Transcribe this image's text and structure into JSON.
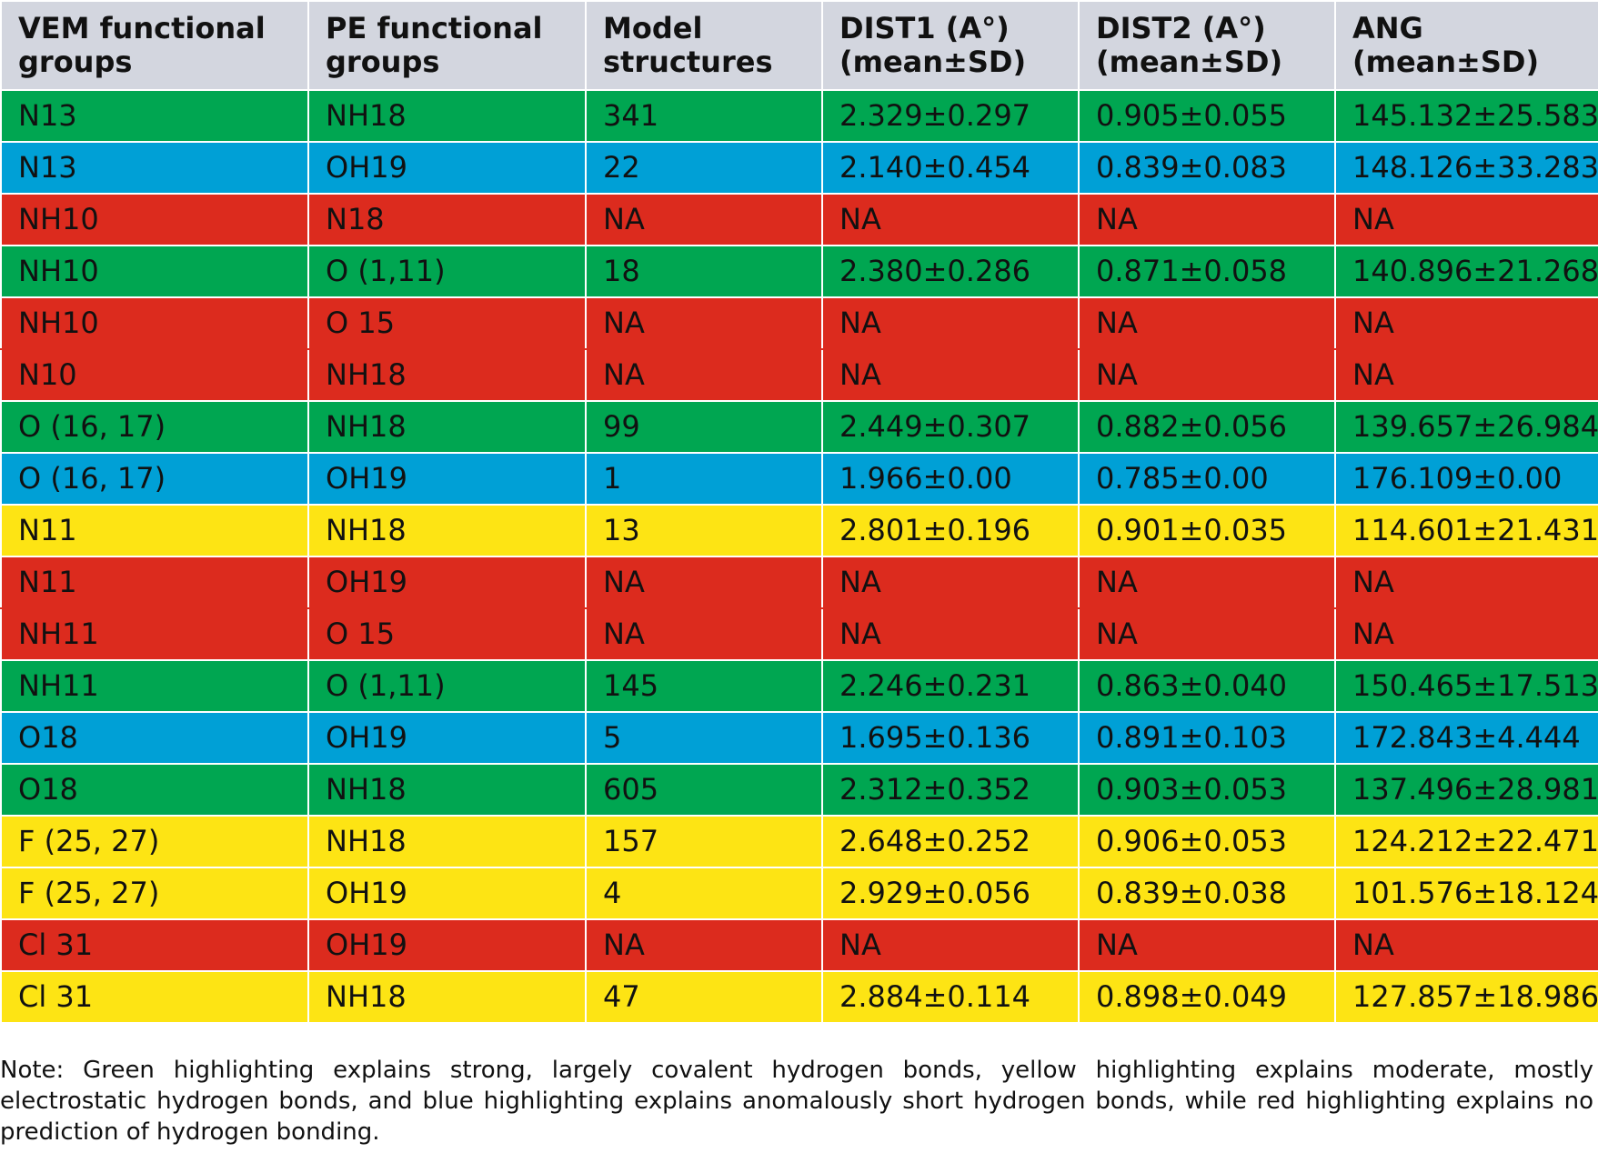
{
  "table": {
    "headers": [
      "VEM functional groups",
      "PE functional groups",
      "Model structures",
      "DIST1 (A°) (mean±SD)",
      "DIST2 (A°) (mean±SD)",
      "ANG (mean±SD)"
    ],
    "colors": {
      "header": "#d3d6df",
      "green": "#00a651",
      "blue": "#00a0d6",
      "red": "#dc2b1e",
      "yellow": "#fde414"
    },
    "rows": [
      {
        "highlight": "green",
        "cells": [
          "N13",
          "NH18",
          "341",
          "2.329±0.297",
          "0.905±0.055",
          "145.132±25.583"
        ]
      },
      {
        "highlight": "blue",
        "cells": [
          "N13",
          "OH19",
          "22",
          "2.140±0.454",
          "0.839±0.083",
          "148.126±33.283"
        ]
      },
      {
        "highlight": "red",
        "cells": [
          "NH10",
          "N18",
          "NA",
          "NA",
          "NA",
          "NA"
        ]
      },
      {
        "highlight": "green",
        "cells": [
          "NH10",
          "O (1,11)",
          "18",
          "2.380±0.286",
          "0.871±0.058",
          "140.896±21.268"
        ]
      },
      {
        "highlight": "red",
        "cells": [
          "NH10",
          "O 15",
          "NA",
          "NA",
          "NA",
          "NA"
        ]
      },
      {
        "highlight": "red",
        "cells": [
          "N10",
          "NH18",
          "NA",
          "NA",
          "NA",
          "NA"
        ]
      },
      {
        "highlight": "green",
        "cells": [
          "O (16, 17)",
          "NH18",
          "99",
          "2.449±0.307",
          "0.882±0.056",
          "139.657±26.984"
        ]
      },
      {
        "highlight": "blue",
        "cells": [
          "O (16, 17)",
          "OH19",
          "1",
          "1.966±0.00",
          "0.785±0.00",
          "176.109±0.00"
        ]
      },
      {
        "highlight": "yellow",
        "cells": [
          "N11",
          "NH18",
          "13",
          "2.801±0.196",
          "0.901±0.035",
          "114.601±21.431"
        ]
      },
      {
        "highlight": "red",
        "cells": [
          "N11",
          "OH19",
          "NA",
          "NA",
          "NA",
          "NA"
        ]
      },
      {
        "highlight": "red",
        "cells": [
          "NH11",
          "O 15",
          "NA",
          "NA",
          "NA",
          "NA"
        ]
      },
      {
        "highlight": "green",
        "cells": [
          "NH11",
          "O (1,11)",
          "145",
          "2.246±0.231",
          "0.863±0.040",
          "150.465±17.513"
        ]
      },
      {
        "highlight": "blue",
        "cells": [
          "O18",
          "OH19",
          "5",
          "1.695±0.136",
          "0.891±0.103",
          "172.843±4.444"
        ]
      },
      {
        "highlight": "green",
        "cells": [
          "O18",
          "NH18",
          "605",
          "2.312±0.352",
          "0.903±0.053",
          "137.496±28.981"
        ]
      },
      {
        "highlight": "yellow",
        "cells": [
          "F (25, 27)",
          "NH18",
          "157",
          "2.648±0.252",
          "0.906±0.053",
          "124.212±22.471"
        ]
      },
      {
        "highlight": "yellow",
        "cells": [
          "F (25, 27)",
          "OH19",
          "4",
          "2.929±0.056",
          "0.839±0.038",
          "101.576±18.124"
        ]
      },
      {
        "highlight": "red",
        "cells": [
          "Cl 31",
          "OH19",
          "NA",
          "NA",
          "NA",
          "NA"
        ]
      },
      {
        "highlight": "yellow",
        "cells": [
          "Cl 31",
          "NH18",
          "47",
          "2.884±0.114",
          "0.898±0.049",
          "127.857±18.986"
        ]
      }
    ]
  },
  "note": "Note: Green highlighting explains strong, largely covalent hydrogen bonds, yellow highlighting explains moderate, mostly electrostatic hydrogen bonds, and blue highlighting explains anomalously short hydrogen bonds, while red highlighting explains no prediction of hydrogen bonding."
}
